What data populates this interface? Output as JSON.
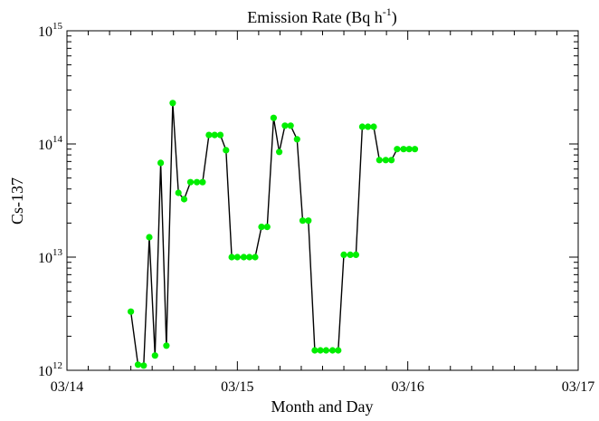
{
  "chart_data": {
    "type": "line",
    "title": "Emission Rate (Bq h",
    "title_superscript": "-1",
    "title_suffix": ")",
    "xlabel": "Month and Day",
    "ylabel": "Cs-137",
    "x_ticks": [
      "03/14",
      "03/15",
      "03/16",
      "03/17"
    ],
    "y_ticks": [
      {
        "base": "10",
        "exp": "12"
      },
      {
        "base": "10",
        "exp": "13"
      },
      {
        "base": "10",
        "exp": "14"
      },
      {
        "base": "10",
        "exp": "15"
      }
    ],
    "xlim": [
      0,
      72
    ],
    "ylim": [
      1000000000000.0,
      1000000000000000.0
    ],
    "yscale": "log",
    "grid": false,
    "series": [
      {
        "line_color": "#000000",
        "marker_color": "#00ee00",
        "points": [
          [
            9.0,
            3300000000000.0
          ],
          [
            10.0,
            1120000000000.0
          ],
          [
            10.8,
            1100000000000.0
          ],
          [
            11.6,
            15000000000000.0
          ],
          [
            12.4,
            1350000000000.0
          ],
          [
            13.2,
            68000000000000.0
          ],
          [
            14.0,
            1650000000000.0
          ],
          [
            14.9,
            230000000000000.0
          ],
          [
            15.7,
            37000000000000.0
          ],
          [
            16.5,
            32500000000000.0
          ],
          [
            17.4,
            46000000000000.0
          ],
          [
            18.3,
            46000000000000.0
          ],
          [
            19.1,
            46000000000000.0
          ],
          [
            20.0,
            120000000000000.0
          ],
          [
            20.8,
            120000000000000.0
          ],
          [
            21.6,
            120000000000000.0
          ],
          [
            22.4,
            88000000000000.0
          ],
          [
            23.2,
            10000000000000.0
          ],
          [
            24.0,
            10000000000000.0
          ],
          [
            24.9,
            10000000000000.0
          ],
          [
            25.7,
            10000000000000.0
          ],
          [
            26.5,
            10000000000000.0
          ],
          [
            27.4,
            18500000000000.0
          ],
          [
            28.2,
            18500000000000.0
          ],
          [
            29.1,
            170000000000000.0
          ],
          [
            29.9,
            85000000000000.0
          ],
          [
            30.7,
            145000000000000.0
          ],
          [
            31.5,
            145000000000000.0
          ],
          [
            32.4,
            110000000000000.0
          ],
          [
            33.2,
            21000000000000.0
          ],
          [
            34.0,
            21000000000000.0
          ],
          [
            34.9,
            1500000000000.0
          ],
          [
            35.7,
            1500000000000.0
          ],
          [
            36.5,
            1500000000000.0
          ],
          [
            37.4,
            1500000000000.0
          ],
          [
            38.2,
            1500000000000.0
          ],
          [
            39.0,
            10500000000000.0
          ],
          [
            39.9,
            10500000000000.0
          ],
          [
            40.7,
            10500000000000.0
          ],
          [
            41.6,
            142000000000000.0
          ],
          [
            42.4,
            142000000000000.0
          ],
          [
            43.2,
            142000000000000.0
          ],
          [
            44.0,
            72000000000000.0
          ],
          [
            44.9,
            72000000000000.0
          ],
          [
            45.7,
            72000000000000.0
          ],
          [
            46.5,
            90000000000000.0
          ],
          [
            47.4,
            90000000000000.0
          ],
          [
            48.2,
            90000000000000.0
          ],
          [
            49.0,
            90000000000000.0
          ]
        ]
      }
    ]
  }
}
